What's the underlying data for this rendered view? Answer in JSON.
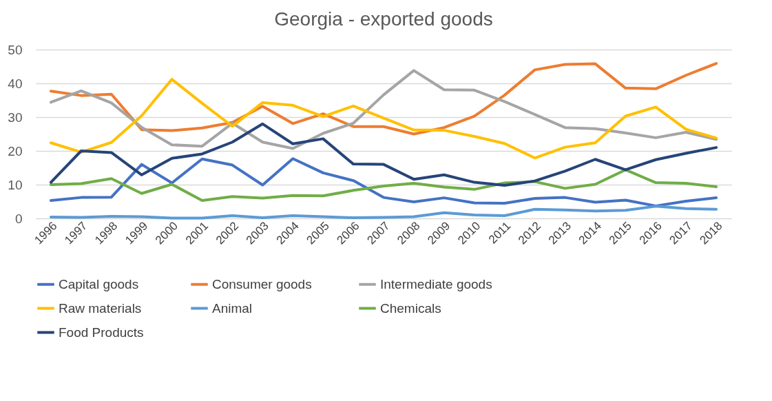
{
  "chart_data": {
    "type": "line",
    "title": "Georgia - exported goods",
    "categories": [
      "1996",
      "1997",
      "1998",
      "1999",
      "2000",
      "2001",
      "2002",
      "2003",
      "2004",
      "2005",
      "2006",
      "2007",
      "2008",
      "2009",
      "2010",
      "2011",
      "2012",
      "2013",
      "2014",
      "2015",
      "2016",
      "2017",
      "2018"
    ],
    "ylim": [
      0,
      50
    ],
    "yticks": [
      0,
      10,
      20,
      30,
      40,
      50
    ],
    "grid": "y",
    "legend": "bottom",
    "marker": "none",
    "line_style": "solid",
    "series": [
      {
        "name": "Capital goods",
        "color": "#4472c4",
        "values": [
          5.3,
          6.2,
          6.3,
          16,
          10.5,
          17.6,
          15.8,
          9.9,
          17.7,
          13.5,
          11.2,
          6.2,
          4.9,
          6.1,
          4.6,
          4.5,
          5.9,
          6.2,
          4.8,
          5.4,
          3.7,
          5.1,
          6.1
        ]
      },
      {
        "name": "Consumer goods",
        "color": "#ed7d31",
        "values": [
          37.7,
          36.4,
          36.8,
          26.3,
          26,
          26.8,
          28.4,
          33.2,
          28.1,
          31,
          27.2,
          27.2,
          25,
          26.9,
          30.3,
          36.5,
          44,
          45.6,
          45.8,
          38.6,
          38.4,
          42.4,
          45.9
        ]
      },
      {
        "name": "Intermediate goods",
        "color": "#a5a5a5",
        "values": [
          34.4,
          37.8,
          34.2,
          27,
          21.8,
          21.4,
          28.2,
          22.6,
          20.7,
          25.2,
          28.2,
          36.6,
          43.8,
          38.1,
          38,
          34.6,
          30.8,
          26.9,
          26.6,
          25.3,
          23.9,
          25.5,
          23.4
        ]
      },
      {
        "name": "Raw materials",
        "color": "#ffc000",
        "values": [
          22.4,
          19.6,
          22.5,
          30.4,
          41.2,
          34.1,
          27.3,
          34.3,
          33.5,
          30.2,
          33.3,
          29.7,
          26.2,
          26.1,
          24.3,
          22.2,
          17.9,
          21.1,
          22.4,
          30.3,
          33,
          26.4,
          23.8
        ]
      },
      {
        "name": "Animal",
        "color": "#5b9bd5",
        "values": [
          0.4,
          0.3,
          0.6,
          0.5,
          0.1,
          0.1,
          0.8,
          0.2,
          0.8,
          0.5,
          0.2,
          0.3,
          0.5,
          1.7,
          1,
          0.8,
          2.7,
          2.5,
          2.2,
          2.4,
          3.6,
          2.9,
          2.7
        ]
      },
      {
        "name": "Chemicals",
        "color": "#70ad47",
        "values": [
          10,
          10.3,
          11.8,
          7.4,
          10.1,
          5.3,
          6.5,
          6,
          6.8,
          6.7,
          8.3,
          9.6,
          10.4,
          9.3,
          8.6,
          10.5,
          10.9,
          8.9,
          10.1,
          14.4,
          10.6,
          10.4,
          9.4
        ]
      },
      {
        "name": "Food Products",
        "color": "#264478",
        "values": [
          10.7,
          20,
          19.5,
          12.9,
          17.8,
          19.1,
          22.6,
          28,
          22.1,
          23.6,
          16.1,
          16,
          11.6,
          12.9,
          10.7,
          9.8,
          11.1,
          14,
          17.5,
          14.4,
          17.4,
          19.3,
          21
        ]
      }
    ]
  }
}
